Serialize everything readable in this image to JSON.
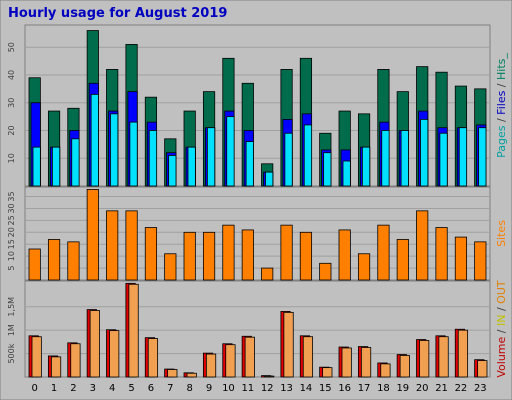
{
  "chart_data": {
    "type": "bar",
    "title": "Hourly usage for August 2019",
    "categories": [
      "0",
      "1",
      "2",
      "3",
      "4",
      "5",
      "6",
      "7",
      "8",
      "9",
      "10",
      "11",
      "12",
      "13",
      "14",
      "15",
      "16",
      "17",
      "18",
      "19",
      "20",
      "21",
      "22",
      "23"
    ],
    "panels": [
      {
        "ticks": [
          10,
          20,
          30,
          40,
          50
        ],
        "ylim": [
          0,
          58
        ],
        "side_label": [
          {
            "text": "Pages",
            "color": "#00a0a0"
          },
          {
            "text": " / ",
            "color": "#404040"
          },
          {
            "text": "Files",
            "color": "#0000c0"
          },
          {
            "text": " / ",
            "color": "#404040"
          },
          {
            "text": "Hits",
            "color": "#008060"
          },
          {
            "text": "_",
            "color": "#008060"
          }
        ],
        "series": [
          {
            "name": "Hits",
            "color": "#006c4c",
            "values": [
              39,
              27,
              28,
              56,
              42,
              51,
              32,
              17,
              27,
              34,
              46,
              37,
              8,
              42,
              46,
              19,
              27,
              26,
              42,
              34,
              43,
              41,
              36,
              35
            ]
          },
          {
            "name": "Files",
            "color": "#0000ff",
            "values": [
              30,
              14,
              20,
              37,
              27,
              34,
              23,
              12,
              14,
              21,
              27,
              20,
              5,
              24,
              26,
              13,
              13,
              14,
              23,
              20,
              27,
              21,
              21,
              22
            ]
          },
          {
            "name": "Pages",
            "color": "#00e0ff",
            "values": [
              14,
              14,
              17,
              33,
              26,
              23,
              20,
              11,
              14,
              21,
              25,
              16,
              5,
              19,
              22,
              12,
              9,
              14,
              20,
              20,
              24,
              19,
              21,
              21
            ]
          }
        ]
      },
      {
        "ticks": [
          5,
          10,
          15,
          20,
          25,
          30,
          35
        ],
        "ylim": [
          0,
          39
        ],
        "side_label": [
          {
            "text": "Sites",
            "color": "#ff8000"
          }
        ],
        "series": [
          {
            "name": "Sites",
            "color": "#ff8000",
            "values": [
              13,
              17,
              16,
              38,
              29,
              29,
              22,
              11,
              20,
              20,
              23,
              21,
              5,
              23,
              20,
              7,
              21,
              11,
              23,
              17,
              29,
              22,
              18,
              16
            ]
          }
        ]
      },
      {
        "ticks": [
          500000,
          1000000,
          1500000
        ],
        "tick_labels": [
          "500k",
          "1M",
          "1,5M"
        ],
        "ylim": [
          0,
          2050000
        ],
        "side_label": [
          {
            "text": "Volume",
            "color": "#c00000"
          },
          {
            "text": " / ",
            "color": "#404040"
          },
          {
            "text": "IN",
            "color": "#c0c000"
          },
          {
            "text": " / ",
            "color": "#404040"
          },
          {
            "text": "OUT",
            "color": "#e08000"
          }
        ],
        "series": [
          {
            "name": "Volume",
            "color": "#e00000",
            "values": [
              880000,
              450000,
              730000,
              1440000,
              1010000,
              2000000,
              840000,
              170000,
              90000,
              510000,
              710000,
              870000,
              30000,
              1400000,
              880000,
              210000,
              640000,
              650000,
              300000,
              480000,
              800000,
              880000,
              1020000,
              370000
            ]
          },
          {
            "name": "OUT",
            "color": "#f0a050",
            "values": [
              860000,
              430000,
              710000,
              1420000,
              990000,
              1980000,
              820000,
              160000,
              80000,
              490000,
              690000,
              850000,
              20000,
              1380000,
              860000,
              200000,
              620000,
              630000,
              280000,
              460000,
              780000,
              860000,
              1000000,
              350000
            ]
          }
        ]
      }
    ]
  }
}
